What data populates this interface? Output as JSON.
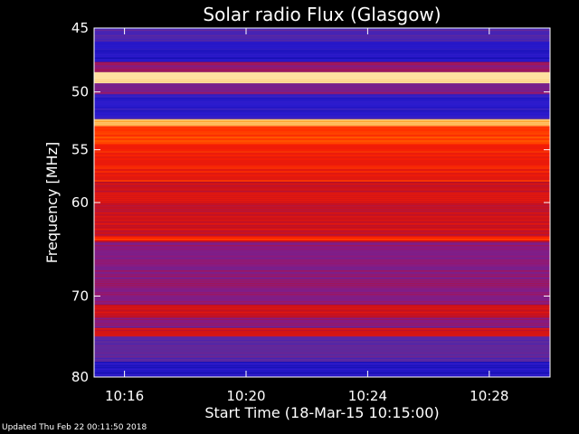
{
  "chart_data": {
    "type": "heatmap",
    "title": "Solar radio Flux (Glasgow)",
    "ylabel": "Frequency [MHz]",
    "xlabel": "Start Time (18-Mar-15 10:15:00)",
    "x_ticks": [
      "10:16",
      "10:20",
      "10:24",
      "10:28"
    ],
    "y_ticks": [
      45,
      50,
      55,
      60,
      70,
      80
    ],
    "y_scale": "log",
    "xlim": [
      "10:15:00",
      "10:30:00"
    ],
    "ylim": [
      45,
      80
    ],
    "colormap": [
      "#0a0a9a",
      "#2a1ad0",
      "#5a2aa0",
      "#8a1a80",
      "#c01020",
      "#ff2000",
      "#ff8a00",
      "#ffe0a0"
    ],
    "bands": [
      {
        "from": 45,
        "to": 46,
        "level": 0.25
      },
      {
        "from": 46,
        "to": 47.6,
        "level": 0.12
      },
      {
        "from": 47.6,
        "to": 48.4,
        "level": 0.45
      },
      {
        "from": 48.4,
        "to": 49.3,
        "level": 1.0
      },
      {
        "from": 49.3,
        "to": 50.2,
        "level": 0.4
      },
      {
        "from": 50.2,
        "to": 52.3,
        "level": 0.15
      },
      {
        "from": 52.3,
        "to": 52.9,
        "level": 0.95
      },
      {
        "from": 52.9,
        "to": 54.5,
        "level": 0.75
      },
      {
        "from": 54.5,
        "to": 58,
        "level": 0.68
      },
      {
        "from": 58,
        "to": 63.5,
        "level": 0.6
      },
      {
        "from": 63.5,
        "to": 64,
        "level": 0.7
      },
      {
        "from": 64,
        "to": 71,
        "level": 0.42
      },
      {
        "from": 71,
        "to": 72.5,
        "level": 0.6
      },
      {
        "from": 72.5,
        "to": 73.8,
        "level": 0.4
      },
      {
        "from": 73.8,
        "to": 74.8,
        "level": 0.62
      },
      {
        "from": 74.8,
        "to": 78,
        "level": 0.3
      },
      {
        "from": 78,
        "to": 80,
        "level": 0.12
      }
    ]
  },
  "footer": {
    "updated": "Updated Thu Feb 22 00:11:50 2018"
  }
}
